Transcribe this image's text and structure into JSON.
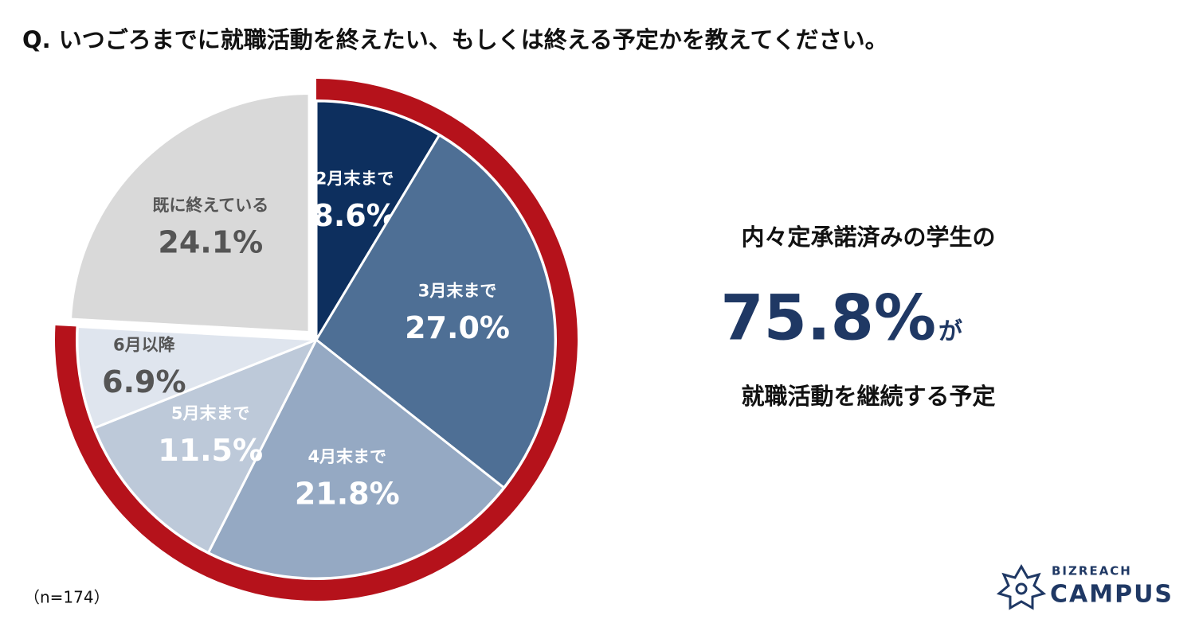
{
  "chart_data": {
    "type": "pie",
    "title": "Q. いつごろまでに就職活動を終えたい、もしくは終える予定かを教えてください。",
    "categories": [
      "2月末まで",
      "3月末まで",
      "4月末まで",
      "5月末まで",
      "6月以降",
      "既に終えている"
    ],
    "values": [
      8.6,
      27.0,
      21.8,
      11.5,
      6.9,
      24.1
    ],
    "value_labels": [
      "8.6%",
      "27.0%",
      "21.8%",
      "11.5%",
      "6.9%",
      "24.1%"
    ],
    "colors": [
      "#0d2f5e",
      "#4e6f95",
      "#95a9c3",
      "#bdc9d9",
      "#dfe5ee",
      "#d9d9d9"
    ],
    "annotations": [
      "内々定承諾済みの学生の",
      "75.8%",
      "が",
      "就職活動を継続する予定"
    ],
    "note": "（n=174）",
    "logo": [
      "BIZREACH",
      "CAMPUS"
    ]
  }
}
